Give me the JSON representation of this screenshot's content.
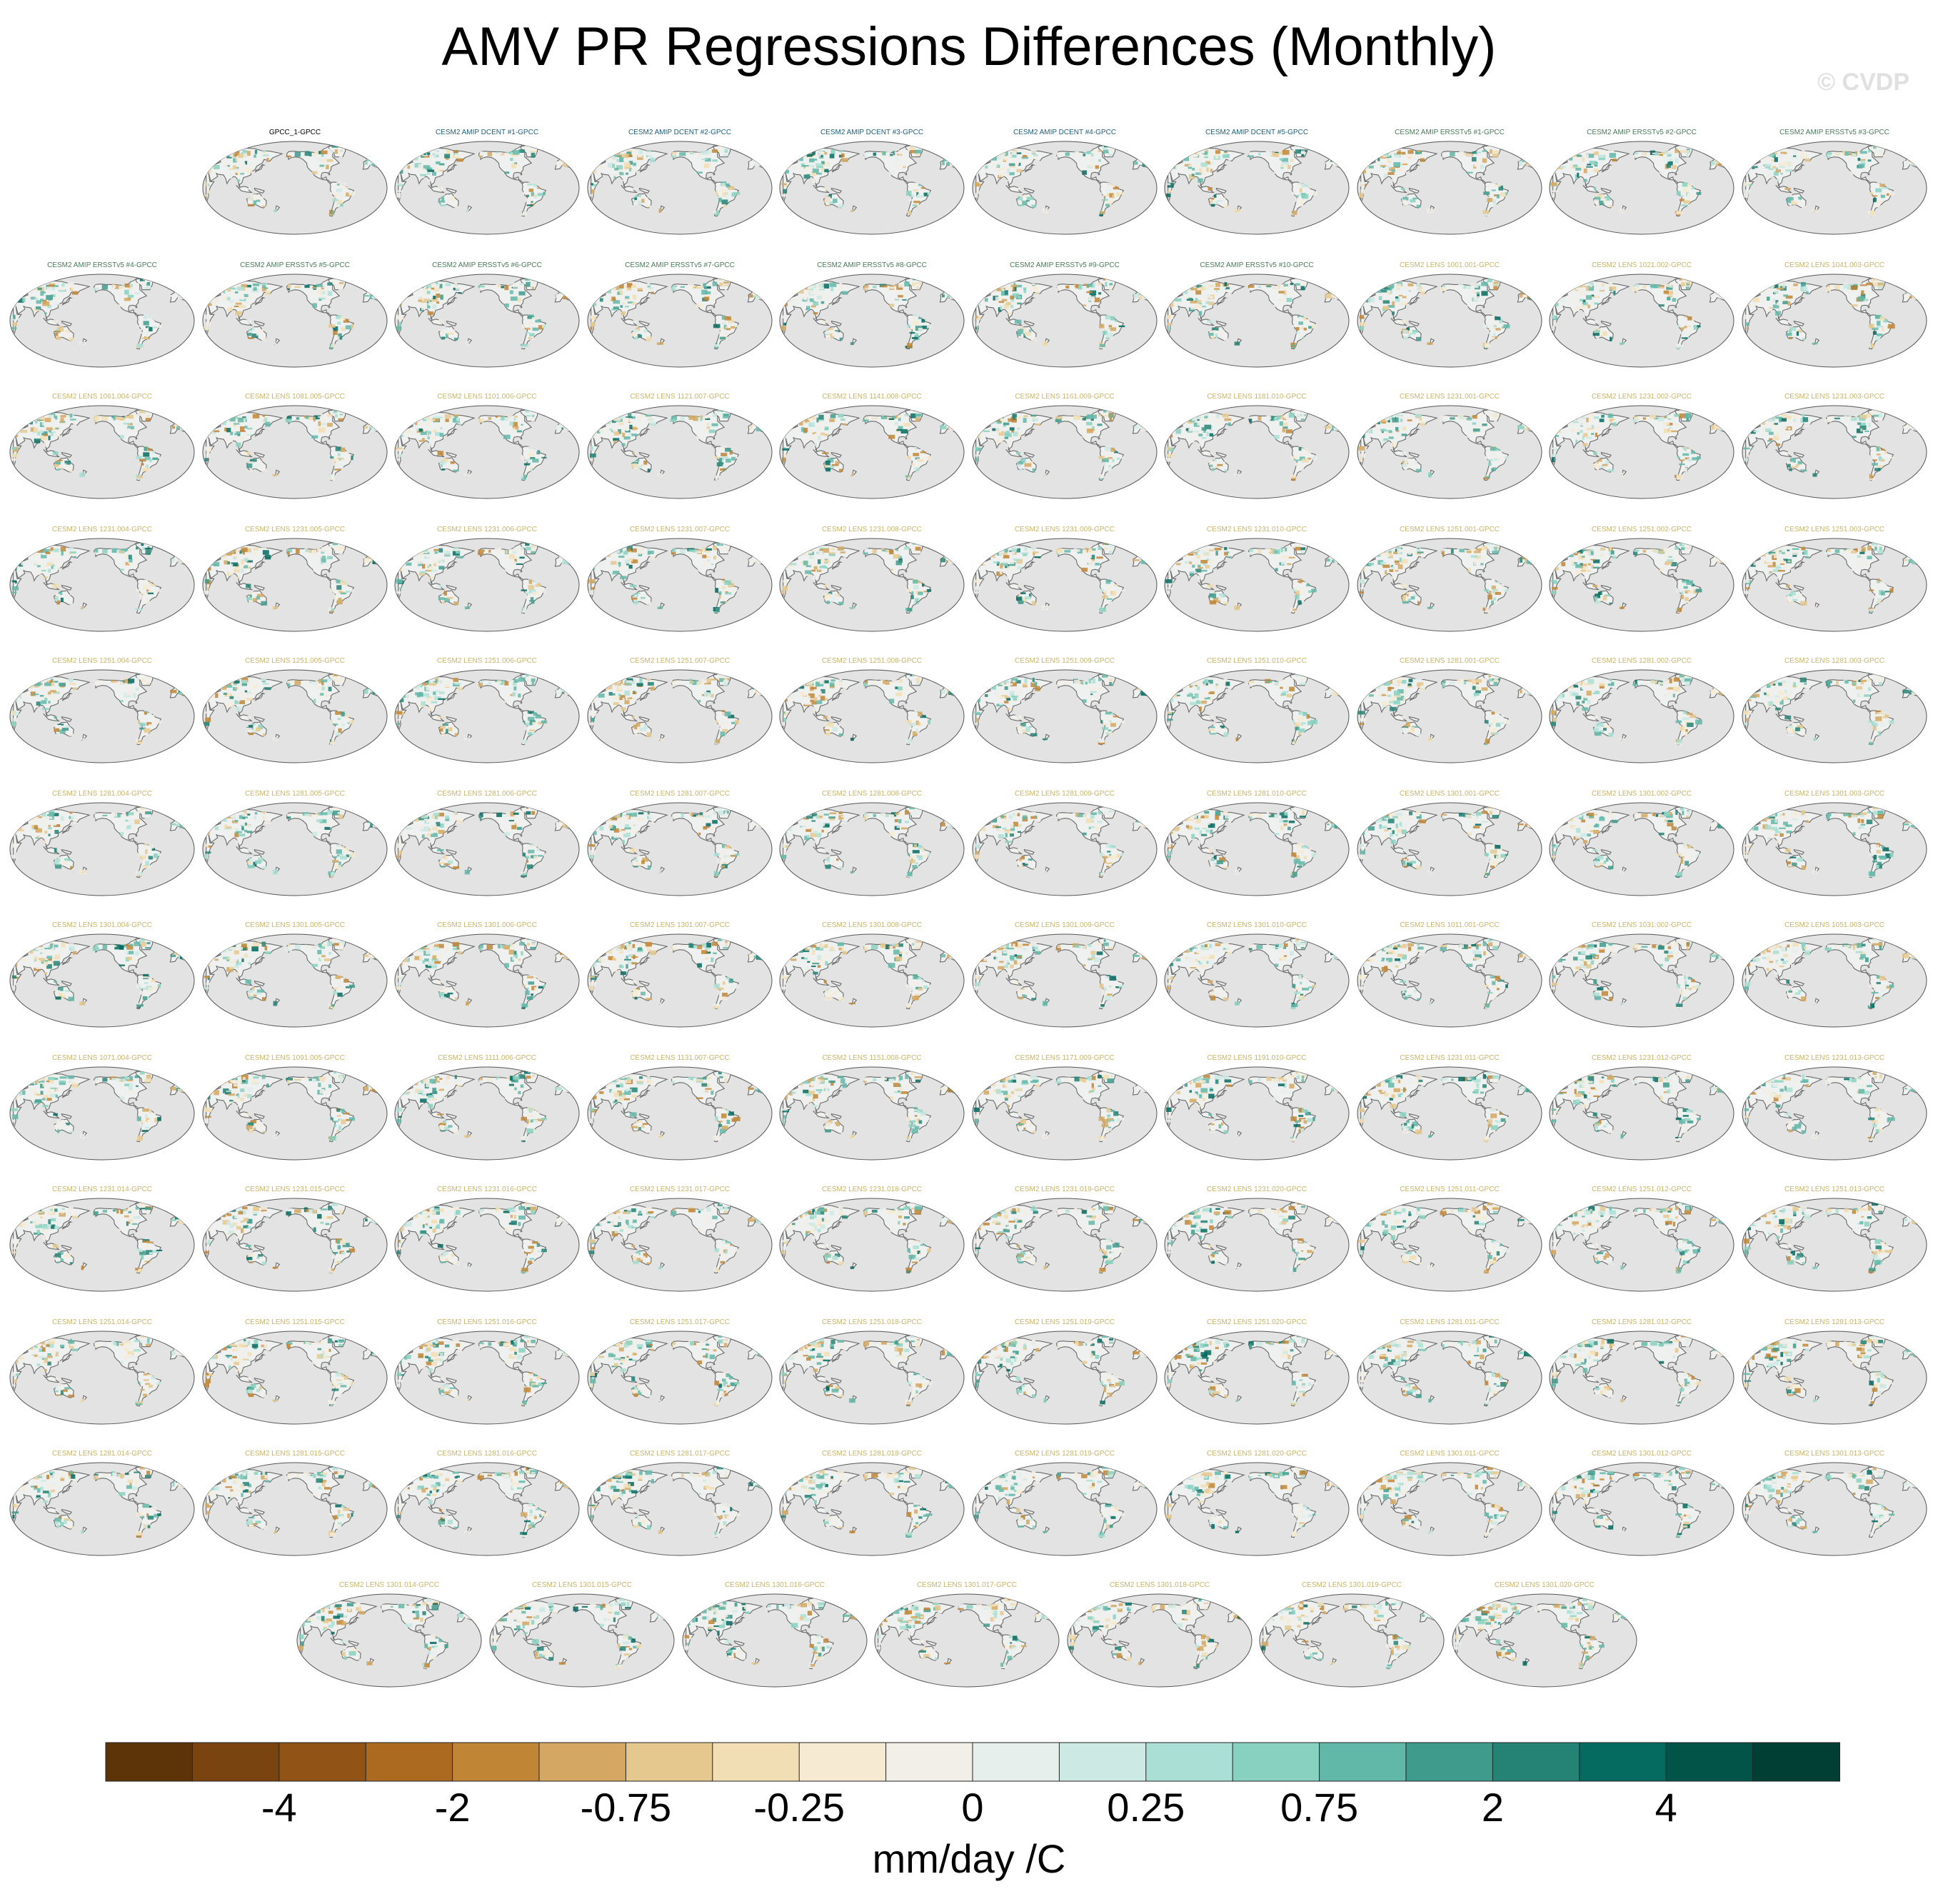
{
  "chart_data": {
    "type": "heatmap",
    "title": "AMV PR Regressions Differences (Monthly)",
    "watermark": "© CVDP",
    "colorbar": {
      "unit_label": "mm/day /C",
      "tick_labels": [
        "-4",
        "-2",
        "-0.75",
        "-0.25",
        "0",
        "0.25",
        "0.75",
        "2",
        "4"
      ],
      "colors": [
        "#5c3408",
        "#7a4410",
        "#915316",
        "#ab6a20",
        "#c08636",
        "#d4a862",
        "#e5c88e",
        "#f1deb4",
        "#f6ebd2",
        "#f2efe9",
        "#e7efed",
        "#cde9e3",
        "#aadfd5",
        "#88d1c1",
        "#61b7a8",
        "#3f9b8c",
        "#248375",
        "#056a5f",
        "#025448",
        "#013e33"
      ]
    },
    "panels": [
      {
        "title": "GPCC_1-GPCC",
        "color": "#000000"
      },
      {
        "title": "CESM2 AMIP DCENT #1-GPCC",
        "color": "#1f5f7a"
      },
      {
        "title": "CESM2 AMIP DCENT #2-GPCC",
        "color": "#1f5f7a"
      },
      {
        "title": "CESM2 AMIP DCENT #3-GPCC",
        "color": "#1f5f7a"
      },
      {
        "title": "CESM2 AMIP DCENT #4-GPCC",
        "color": "#1f5f7a"
      },
      {
        "title": "CESM2 AMIP DCENT #5-GPCC",
        "color": "#1f5f7a"
      },
      {
        "title": "CESM2 AMIP ERSSTv5 #1-GPCC",
        "color": "#4b7a5a"
      },
      {
        "title": "CESM2 AMIP ERSSTv5 #2-GPCC",
        "color": "#4b7a5a"
      },
      {
        "title": "CESM2 AMIP ERSSTv5 #3-GPCC",
        "color": "#4b7a5a"
      },
      {
        "title": "CESM2 AMIP ERSSTv5 #4-GPCC",
        "color": "#4b7a5a"
      },
      {
        "title": "CESM2 AMIP ERSSTv5 #5-GPCC",
        "color": "#4b7a5a"
      },
      {
        "title": "CESM2 AMIP ERSSTv5 #6-GPCC",
        "color": "#4b7a5a"
      },
      {
        "title": "CESM2 AMIP ERSSTv5 #7-GPCC",
        "color": "#4b7a5a"
      },
      {
        "title": "CESM2 AMIP ERSSTv5 #8-GPCC",
        "color": "#4b7a5a"
      },
      {
        "title": "CESM2 AMIP ERSSTv5 #9-GPCC",
        "color": "#4b7a5a"
      },
      {
        "title": "CESM2 AMIP ERSSTv5 #10-GPCC",
        "color": "#4b7a5a"
      },
      {
        "title": "CESM2 LENS 1001.001-GPCC",
        "color": "#c8b46a"
      },
      {
        "title": "CESM2 LENS 1021.002-GPCC",
        "color": "#c8b46a"
      },
      {
        "title": "CESM2 LENS 1041.003-GPCC",
        "color": "#c8b46a"
      },
      {
        "title": "CESM2 LENS 1061.004-GPCC",
        "color": "#c8b46a"
      },
      {
        "title": "CESM2 LENS 1081.005-GPCC",
        "color": "#c8b46a"
      },
      {
        "title": "CESM2 LENS 1101.006-GPCC",
        "color": "#c8b46a"
      },
      {
        "title": "CESM2 LENS 1121.007-GPCC",
        "color": "#c8b46a"
      },
      {
        "title": "CESM2 LENS 1141.008-GPCC",
        "color": "#c8b46a"
      },
      {
        "title": "CESM2 LENS 1161.009-GPCC",
        "color": "#c8b46a"
      },
      {
        "title": "CESM2 LENS 1181.010-GPCC",
        "color": "#c8b46a"
      },
      {
        "title": "CESM2 LENS 1231.001-GPCC",
        "color": "#c8b46a"
      },
      {
        "title": "CESM2 LENS 1231.002-GPCC",
        "color": "#c8b46a"
      },
      {
        "title": "CESM2 LENS 1231.003-GPCC",
        "color": "#c8b46a"
      },
      {
        "title": "CESM2 LENS 1231.004-GPCC",
        "color": "#c8b46a"
      },
      {
        "title": "CESM2 LENS 1231.005-GPCC",
        "color": "#c8b46a"
      },
      {
        "title": "CESM2 LENS 1231.006-GPCC",
        "color": "#c8b46a"
      },
      {
        "title": "CESM2 LENS 1231.007-GPCC",
        "color": "#c8b46a"
      },
      {
        "title": "CESM2 LENS 1231.008-GPCC",
        "color": "#c8b46a"
      },
      {
        "title": "CESM2 LENS 1231.009-GPCC",
        "color": "#c8b46a"
      },
      {
        "title": "CESM2 LENS 1231.010-GPCC",
        "color": "#c8b46a"
      },
      {
        "title": "CESM2 LENS 1251.001-GPCC",
        "color": "#c8b46a"
      },
      {
        "title": "CESM2 LENS 1251.002-GPCC",
        "color": "#c8b46a"
      },
      {
        "title": "CESM2 LENS 1251.003-GPCC",
        "color": "#c8b46a"
      },
      {
        "title": "CESM2 LENS 1251.004-GPCC",
        "color": "#c8b46a"
      },
      {
        "title": "CESM2 LENS 1251.005-GPCC",
        "color": "#c8b46a"
      },
      {
        "title": "CESM2 LENS 1251.006-GPCC",
        "color": "#c8b46a"
      },
      {
        "title": "CESM2 LENS 1251.007-GPCC",
        "color": "#c8b46a"
      },
      {
        "title": "CESM2 LENS 1251.008-GPCC",
        "color": "#c8b46a"
      },
      {
        "title": "CESM2 LENS 1251.009-GPCC",
        "color": "#c8b46a"
      },
      {
        "title": "CESM2 LENS 1251.010-GPCC",
        "color": "#c8b46a"
      },
      {
        "title": "CESM2 LENS 1281.001-GPCC",
        "color": "#c8b46a"
      },
      {
        "title": "CESM2 LENS 1281.002-GPCC",
        "color": "#c8b46a"
      },
      {
        "title": "CESM2 LENS 1281.003-GPCC",
        "color": "#c8b46a"
      },
      {
        "title": "CESM2 LENS 1281.004-GPCC",
        "color": "#c8b46a"
      },
      {
        "title": "CESM2 LENS 1281.005-GPCC",
        "color": "#c8b46a"
      },
      {
        "title": "CESM2 LENS 1281.006-GPCC",
        "color": "#c8b46a"
      },
      {
        "title": "CESM2 LENS 1281.007-GPCC",
        "color": "#c8b46a"
      },
      {
        "title": "CESM2 LENS 1281.008-GPCC",
        "color": "#c8b46a"
      },
      {
        "title": "CESM2 LENS 1281.009-GPCC",
        "color": "#c8b46a"
      },
      {
        "title": "CESM2 LENS 1281.010-GPCC",
        "color": "#c8b46a"
      },
      {
        "title": "CESM2 LENS 1301.001-GPCC",
        "color": "#c8b46a"
      },
      {
        "title": "CESM2 LENS 1301.002-GPCC",
        "color": "#c8b46a"
      },
      {
        "title": "CESM2 LENS 1301.003-GPCC",
        "color": "#c8b46a"
      },
      {
        "title": "CESM2 LENS 1301.004-GPCC",
        "color": "#c8b46a"
      },
      {
        "title": "CESM2 LENS 1301.005-GPCC",
        "color": "#c8b46a"
      },
      {
        "title": "CESM2 LENS 1301.006-GPCC",
        "color": "#c8b46a"
      },
      {
        "title": "CESM2 LENS 1301.007-GPCC",
        "color": "#c8b46a"
      },
      {
        "title": "CESM2 LENS 1301.008-GPCC",
        "color": "#c8b46a"
      },
      {
        "title": "CESM2 LENS 1301.009-GPCC",
        "color": "#c8b46a"
      },
      {
        "title": "CESM2 LENS 1301.010-GPCC",
        "color": "#c8b46a"
      },
      {
        "title": "CESM2 LENS 1011.001-GPCC",
        "color": "#c8b46a"
      },
      {
        "title": "CESM2 LENS 1031.002-GPCC",
        "color": "#c8b46a"
      },
      {
        "title": "CESM2 LENS 1051.003-GPCC",
        "color": "#c8b46a"
      },
      {
        "title": "CESM2 LENS 1071.004-GPCC",
        "color": "#c8b46a"
      },
      {
        "title": "CESM2 LENS 1091.005-GPCC",
        "color": "#c8b46a"
      },
      {
        "title": "CESM2 LENS 1111.006-GPCC",
        "color": "#c8b46a"
      },
      {
        "title": "CESM2 LENS 1131.007-GPCC",
        "color": "#c8b46a"
      },
      {
        "title": "CESM2 LENS 1151.008-GPCC",
        "color": "#c8b46a"
      },
      {
        "title": "CESM2 LENS 1171.009-GPCC",
        "color": "#c8b46a"
      },
      {
        "title": "CESM2 LENS 1191.010-GPCC",
        "color": "#c8b46a"
      },
      {
        "title": "CESM2 LENS 1231.011-GPCC",
        "color": "#c8b46a"
      },
      {
        "title": "CESM2 LENS 1231.012-GPCC",
        "color": "#c8b46a"
      },
      {
        "title": "CESM2 LENS 1231.013-GPCC",
        "color": "#c8b46a"
      },
      {
        "title": "CESM2 LENS 1231.014-GPCC",
        "color": "#c8b46a"
      },
      {
        "title": "CESM2 LENS 1231.015-GPCC",
        "color": "#c8b46a"
      },
      {
        "title": "CESM2 LENS 1231.016-GPCC",
        "color": "#c8b46a"
      },
      {
        "title": "CESM2 LENS 1231.017-GPCC",
        "color": "#c8b46a"
      },
      {
        "title": "CESM2 LENS 1231.018-GPCC",
        "color": "#c8b46a"
      },
      {
        "title": "CESM2 LENS 1231.019-GPCC",
        "color": "#c8b46a"
      },
      {
        "title": "CESM2 LENS 1231.020-GPCC",
        "color": "#c8b46a"
      },
      {
        "title": "CESM2 LENS 1251.011-GPCC",
        "color": "#c8b46a"
      },
      {
        "title": "CESM2 LENS 1251.012-GPCC",
        "color": "#c8b46a"
      },
      {
        "title": "CESM2 LENS 1251.013-GPCC",
        "color": "#c8b46a"
      },
      {
        "title": "CESM2 LENS 1251.014-GPCC",
        "color": "#c8b46a"
      },
      {
        "title": "CESM2 LENS 1251.015-GPCC",
        "color": "#c8b46a"
      },
      {
        "title": "CESM2 LENS 1251.016-GPCC",
        "color": "#c8b46a"
      },
      {
        "title": "CESM2 LENS 1251.017-GPCC",
        "color": "#c8b46a"
      },
      {
        "title": "CESM2 LENS 1251.018-GPCC",
        "color": "#c8b46a"
      },
      {
        "title": "CESM2 LENS 1251.019-GPCC",
        "color": "#c8b46a"
      },
      {
        "title": "CESM2 LENS 1251.020-GPCC",
        "color": "#c8b46a"
      },
      {
        "title": "CESM2 LENS 1281.011-GPCC",
        "color": "#c8b46a"
      },
      {
        "title": "CESM2 LENS 1281.012-GPCC",
        "color": "#c8b46a"
      },
      {
        "title": "CESM2 LENS 1281.013-GPCC",
        "color": "#c8b46a"
      },
      {
        "title": "CESM2 LENS 1281.014-GPCC",
        "color": "#c8b46a"
      },
      {
        "title": "CESM2 LENS 1281.015-GPCC",
        "color": "#c8b46a"
      },
      {
        "title": "CESM2 LENS 1281.016-GPCC",
        "color": "#c8b46a"
      },
      {
        "title": "CESM2 LENS 1281.017-GPCC",
        "color": "#c8b46a"
      },
      {
        "title": "CESM2 LENS 1281.018-GPCC",
        "color": "#c8b46a"
      },
      {
        "title": "CESM2 LENS 1281.019-GPCC",
        "color": "#c8b46a"
      },
      {
        "title": "CESM2 LENS 1281.020-GPCC",
        "color": "#c8b46a"
      },
      {
        "title": "CESM2 LENS 1301.011-GPCC",
        "color": "#c8b46a"
      },
      {
        "title": "CESM2 LENS 1301.012-GPCC",
        "color": "#c8b46a"
      },
      {
        "title": "CESM2 LENS 1301.013-GPCC",
        "color": "#c8b46a"
      },
      {
        "title": "CESM2 LENS 1301.014-GPCC",
        "color": "#c8b46a"
      },
      {
        "title": "CESM2 LENS 1301.015-GPCC",
        "color": "#c8b46a"
      },
      {
        "title": "CESM2 LENS 1301.016-GPCC",
        "color": "#c8b46a"
      },
      {
        "title": "CESM2 LENS 1301.017-GPCC",
        "color": "#c8b46a"
      },
      {
        "title": "CESM2 LENS 1301.018-GPCC",
        "color": "#c8b46a"
      },
      {
        "title": "CESM2 LENS 1301.019-GPCC",
        "color": "#c8b46a"
      },
      {
        "title": "CESM2 LENS 1301.020-GPCC",
        "color": "#c8b46a"
      }
    ]
  }
}
